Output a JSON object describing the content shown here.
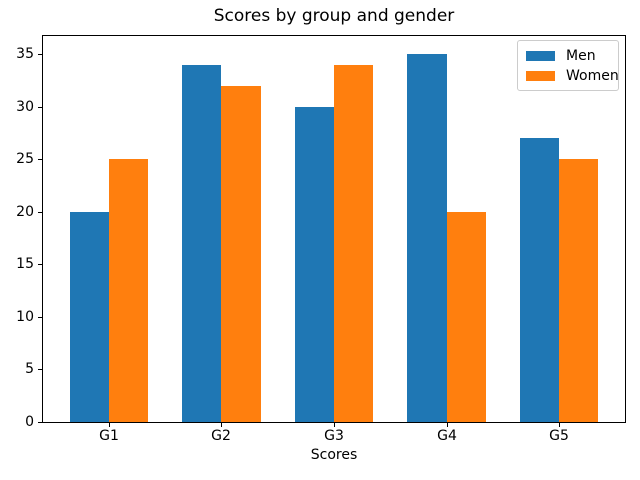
{
  "chart_data": {
    "type": "bar",
    "title": "Scores by group and gender",
    "xlabel": "Scores",
    "ylabel": "",
    "categories": [
      "G1",
      "G2",
      "G3",
      "G4",
      "G5"
    ],
    "series": [
      {
        "name": "Men",
        "color": "#1f77b4",
        "values": [
          20,
          34,
          30,
          35,
          27
        ]
      },
      {
        "name": "Women",
        "color": "#ff7f0e",
        "values": [
          25,
          32,
          34,
          20,
          25
        ]
      }
    ],
    "yticks": [
      0,
      5,
      10,
      15,
      20,
      25,
      30,
      35
    ],
    "ylim": [
      0,
      36.75
    ],
    "bar_width": 0.35,
    "grid": false,
    "legend_position": "upper right",
    "background_color": "#ffffff",
    "text_color": "#000000"
  }
}
